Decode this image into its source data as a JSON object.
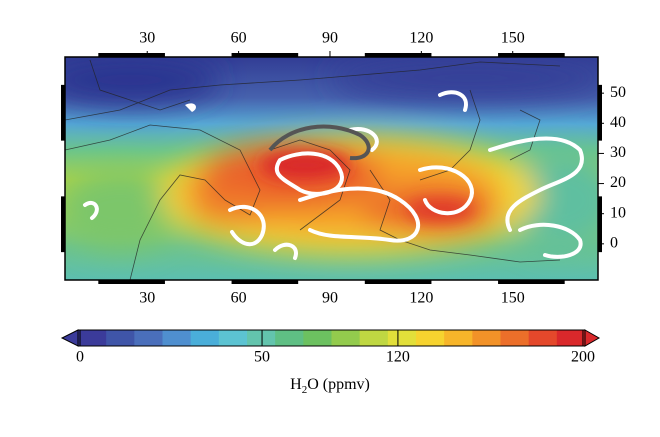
{
  "map": {
    "xlim": [
      3,
      178
    ],
    "ylim": [
      -12,
      62
    ],
    "xticks": [
      30,
      60,
      90,
      120,
      150
    ],
    "yticks": [
      0,
      10,
      20,
      30,
      40,
      50
    ]
  },
  "colorbar": {
    "ticks": [
      0,
      50,
      120,
      200
    ],
    "label": [
      "H",
      "2",
      "O (ppmv)"
    ],
    "colors": [
      "#3b3b9a",
      "#3f55a8",
      "#4a6fbb",
      "#4f8fcf",
      "#4aaed9",
      "#5cc3d2",
      "#63c4ad",
      "#5fbf84",
      "#6cc160",
      "#93cb4d",
      "#bfd742",
      "#e2df3a",
      "#f6d32f",
      "#f7b52a",
      "#f29228",
      "#ec6f2a",
      "#e4482b",
      "#d9282b"
    ]
  }
}
